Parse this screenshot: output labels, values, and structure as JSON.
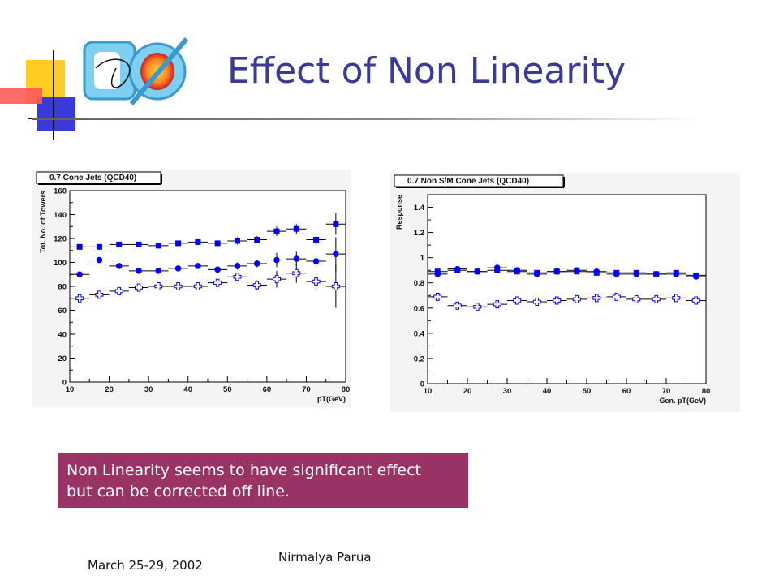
{
  "slide": {
    "title": "Effect of Non Linearity",
    "logo_text": "DØ",
    "callout": {
      "line1": "Non Linearity seems to have significant effect",
      "line2": "but can be corrected off line."
    },
    "footer": {
      "date": "March 25-29, 2002",
      "author": "Nirmalya Parua"
    }
  },
  "colors": {
    "title": "#3a3a9a",
    "callout_bg": "#993366",
    "marker": "#0000ff",
    "frame": "#f4f4f4"
  },
  "chart_data": [
    {
      "type": "scatter",
      "title": "0.7 Cone Jets (QCD40)",
      "xlabel": "pT(GeV)",
      "ylabel": "Tot. No. of Towers",
      "xlim": [
        10,
        80
      ],
      "ylim": [
        0,
        160
      ],
      "xticks": [
        "10",
        "20",
        "30",
        "40",
        "50",
        "60",
        "70",
        "80"
      ],
      "yticks": [
        "0",
        "20",
        "40",
        "60",
        "80",
        "100",
        "120",
        "140",
        "160"
      ],
      "x": [
        12.5,
        17.5,
        22.5,
        27.5,
        32.5,
        37.5,
        42.5,
        47.5,
        52.5,
        57.5,
        62.5,
        67.5,
        72.5,
        77.5
      ],
      "series": [
        {
          "marker": "square",
          "values": [
            113,
            113,
            115,
            115,
            114,
            116,
            117,
            116,
            118,
            119,
            126,
            128,
            119,
            132
          ],
          "errors": [
            2,
            2,
            2,
            2,
            2,
            2,
            2,
            2,
            3,
            3,
            4,
            4,
            5,
            9
          ]
        },
        {
          "marker": "circle",
          "values": [
            90,
            102,
            97,
            93,
            93,
            95,
            97,
            94,
            97,
            99,
            102,
            103,
            101,
            107
          ],
          "errors": [
            2,
            2,
            2,
            2,
            2,
            2,
            2,
            2,
            3,
            3,
            6,
            6,
            5,
            14
          ]
        },
        {
          "marker": "open-cross",
          "values": [
            70,
            73,
            76,
            79,
            80,
            80,
            80,
            83,
            88,
            81,
            86,
            91,
            84,
            80
          ],
          "errors": [
            2,
            2,
            2,
            2,
            2,
            2,
            2,
            3,
            3,
            4,
            7,
            8,
            7,
            18
          ]
        }
      ]
    },
    {
      "type": "scatter",
      "title": "0.7 Non S/M Cone Jets (QCD40)",
      "xlabel": "Gen. pT(GeV)",
      "ylabel": "Response",
      "xlim": [
        10,
        80
      ],
      "ylim": [
        0,
        1.5
      ],
      "xticks": [
        "10",
        "20",
        "30",
        "40",
        "50",
        "60",
        "70",
        "80"
      ],
      "yticks": [
        "0",
        "0.2",
        "0.4",
        "0.6",
        "0.8",
        "1",
        "1.2",
        "1.4"
      ],
      "x": [
        12.5,
        17.5,
        22.5,
        27.5,
        32.5,
        37.5,
        42.5,
        47.5,
        52.5,
        57.5,
        62.5,
        67.5,
        72.5,
        77.5
      ],
      "series": [
        {
          "marker": "square",
          "values": [
            0.89,
            0.9,
            0.89,
            0.9,
            0.89,
            0.88,
            0.89,
            0.89,
            0.88,
            0.88,
            0.88,
            0.87,
            0.88,
            0.86
          ],
          "errors": [
            0.01,
            0.01,
            0.01,
            0.01,
            0.01,
            0.01,
            0.01,
            0.01,
            0.01,
            0.01,
            0.01,
            0.01,
            0.01,
            0.01
          ]
        },
        {
          "marker": "circle",
          "values": [
            0.87,
            0.91,
            0.89,
            0.92,
            0.9,
            0.87,
            0.89,
            0.9,
            0.89,
            0.87,
            0.87,
            0.87,
            0.87,
            0.85
          ],
          "errors": [
            0.01,
            0.01,
            0.01,
            0.01,
            0.01,
            0.01,
            0.01,
            0.01,
            0.01,
            0.01,
            0.01,
            0.01,
            0.01,
            0.01
          ]
        },
        {
          "marker": "open-cross",
          "values": [
            0.69,
            0.62,
            0.61,
            0.63,
            0.66,
            0.65,
            0.66,
            0.67,
            0.68,
            0.69,
            0.67,
            0.67,
            0.68,
            0.66
          ],
          "errors": [
            0.01,
            0.01,
            0.01,
            0.01,
            0.01,
            0.01,
            0.01,
            0.01,
            0.01,
            0.01,
            0.01,
            0.01,
            0.01,
            0.01
          ]
        }
      ]
    }
  ]
}
